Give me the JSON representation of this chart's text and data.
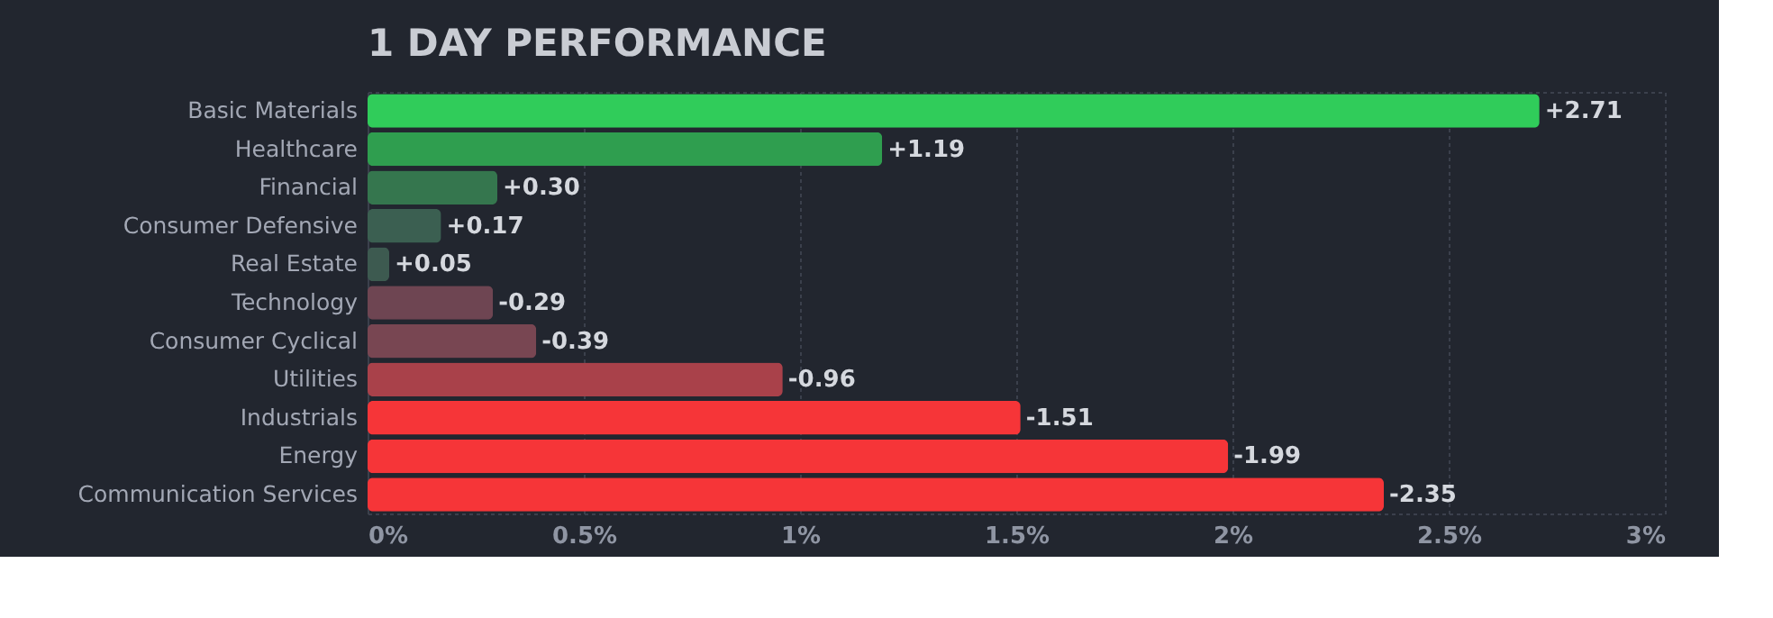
{
  "chart_data": {
    "type": "bar",
    "orientation": "horizontal",
    "title": "1 DAY PERFORMANCE",
    "categories": [
      "Basic Materials",
      "Healthcare",
      "Financial",
      "Consumer Defensive",
      "Real Estate",
      "Technology",
      "Consumer Cyclical",
      "Utilities",
      "Industrials",
      "Energy",
      "Communication Services"
    ],
    "values": [
      2.71,
      1.19,
      0.3,
      0.17,
      0.05,
      0.29,
      0.39,
      0.96,
      1.51,
      1.99,
      2.35
    ],
    "colors": [
      "#30cc5a",
      "#2f9e4f",
      "#35764e",
      "#3b5f51",
      "#3d5a50",
      "#6e4552",
      "#784652",
      "#a9414a",
      "#f63538",
      "#f63538",
      "#f63538"
    ],
    "annotations": [
      {
        "text": "+2.71",
        "x": 2.71,
        "y": "Basic Materials"
      },
      {
        "text": "+1.19",
        "x": 1.19,
        "y": "Healthcare"
      },
      {
        "text": "+0.30",
        "x": 0.3,
        "y": "Financial"
      },
      {
        "text": "+0.17",
        "x": 0.17,
        "y": "Consumer Defensive"
      },
      {
        "text": "+0.05",
        "x": 0.05,
        "y": "Real Estate"
      },
      {
        "text": "-0.29",
        "x": 0.29,
        "y": "Technology"
      },
      {
        "text": "-0.39",
        "x": 0.39,
        "y": "Consumer Cyclical"
      },
      {
        "text": "-0.96",
        "x": 0.96,
        "y": "Utilities"
      },
      {
        "text": "-1.51",
        "x": 1.51,
        "y": "Industrials"
      },
      {
        "text": "-1.99",
        "x": 1.99,
        "y": "Energy"
      },
      {
        "text": "-2.35",
        "x": 2.35,
        "y": "Communication Services"
      }
    ],
    "xlim": [
      0,
      3
    ],
    "xticks": [
      {
        "value": 0,
        "label": "0%"
      },
      {
        "value": 0.5,
        "label": "0.5%"
      },
      {
        "value": 1,
        "label": "1%"
      },
      {
        "value": 1.5,
        "label": "1.5%"
      },
      {
        "value": 2,
        "label": "2%"
      },
      {
        "value": 2.5,
        "label": "2.5%"
      },
      {
        "value": 3,
        "label": "3%"
      }
    ],
    "grid": "x"
  }
}
